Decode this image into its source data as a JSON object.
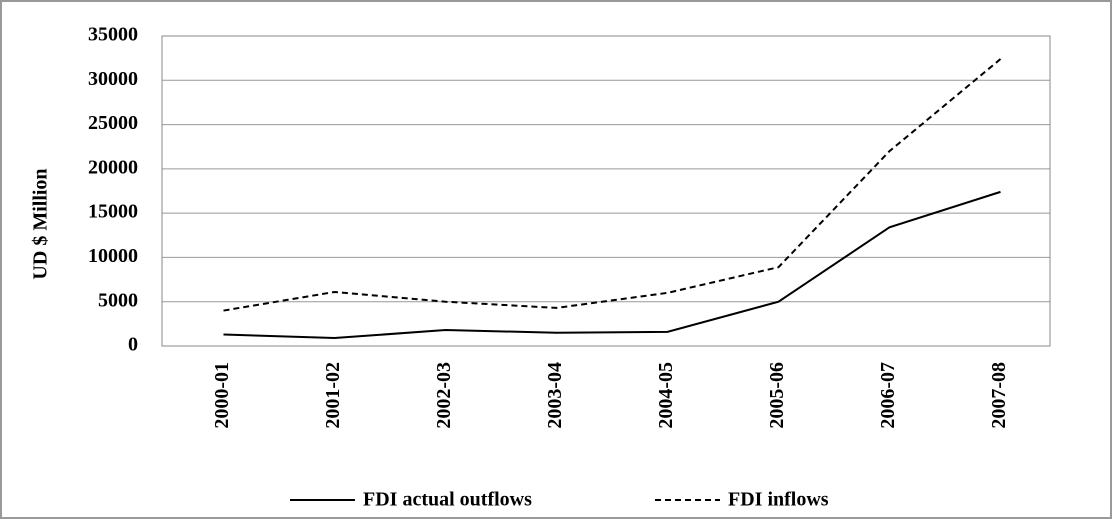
{
  "chart_data": {
    "type": "line",
    "y_label": "UD $ Million",
    "categories": [
      "2000-01",
      "2001-02",
      "2002-03",
      "2003-04",
      "2004-05",
      "2005-06",
      "2006-07",
      "2007-08"
    ],
    "series": [
      {
        "name": "FDI actual outflows",
        "color": "#000000",
        "dash": "solid",
        "values": [
          1300,
          900,
          1800,
          1500,
          1600,
          5000,
          13400,
          17400
        ]
      },
      {
        "name": "FDI inflows",
        "color": "#000000",
        "dash": "dashed",
        "values": [
          4000,
          6100,
          5000,
          4300,
          6000,
          8900,
          22000,
          32400
        ]
      }
    ],
    "ylim": [
      0,
      35000
    ],
    "yticks": [
      0,
      5000,
      10000,
      15000,
      20000,
      25000,
      30000,
      35000
    ],
    "grid": true,
    "legend": "bottom"
  }
}
